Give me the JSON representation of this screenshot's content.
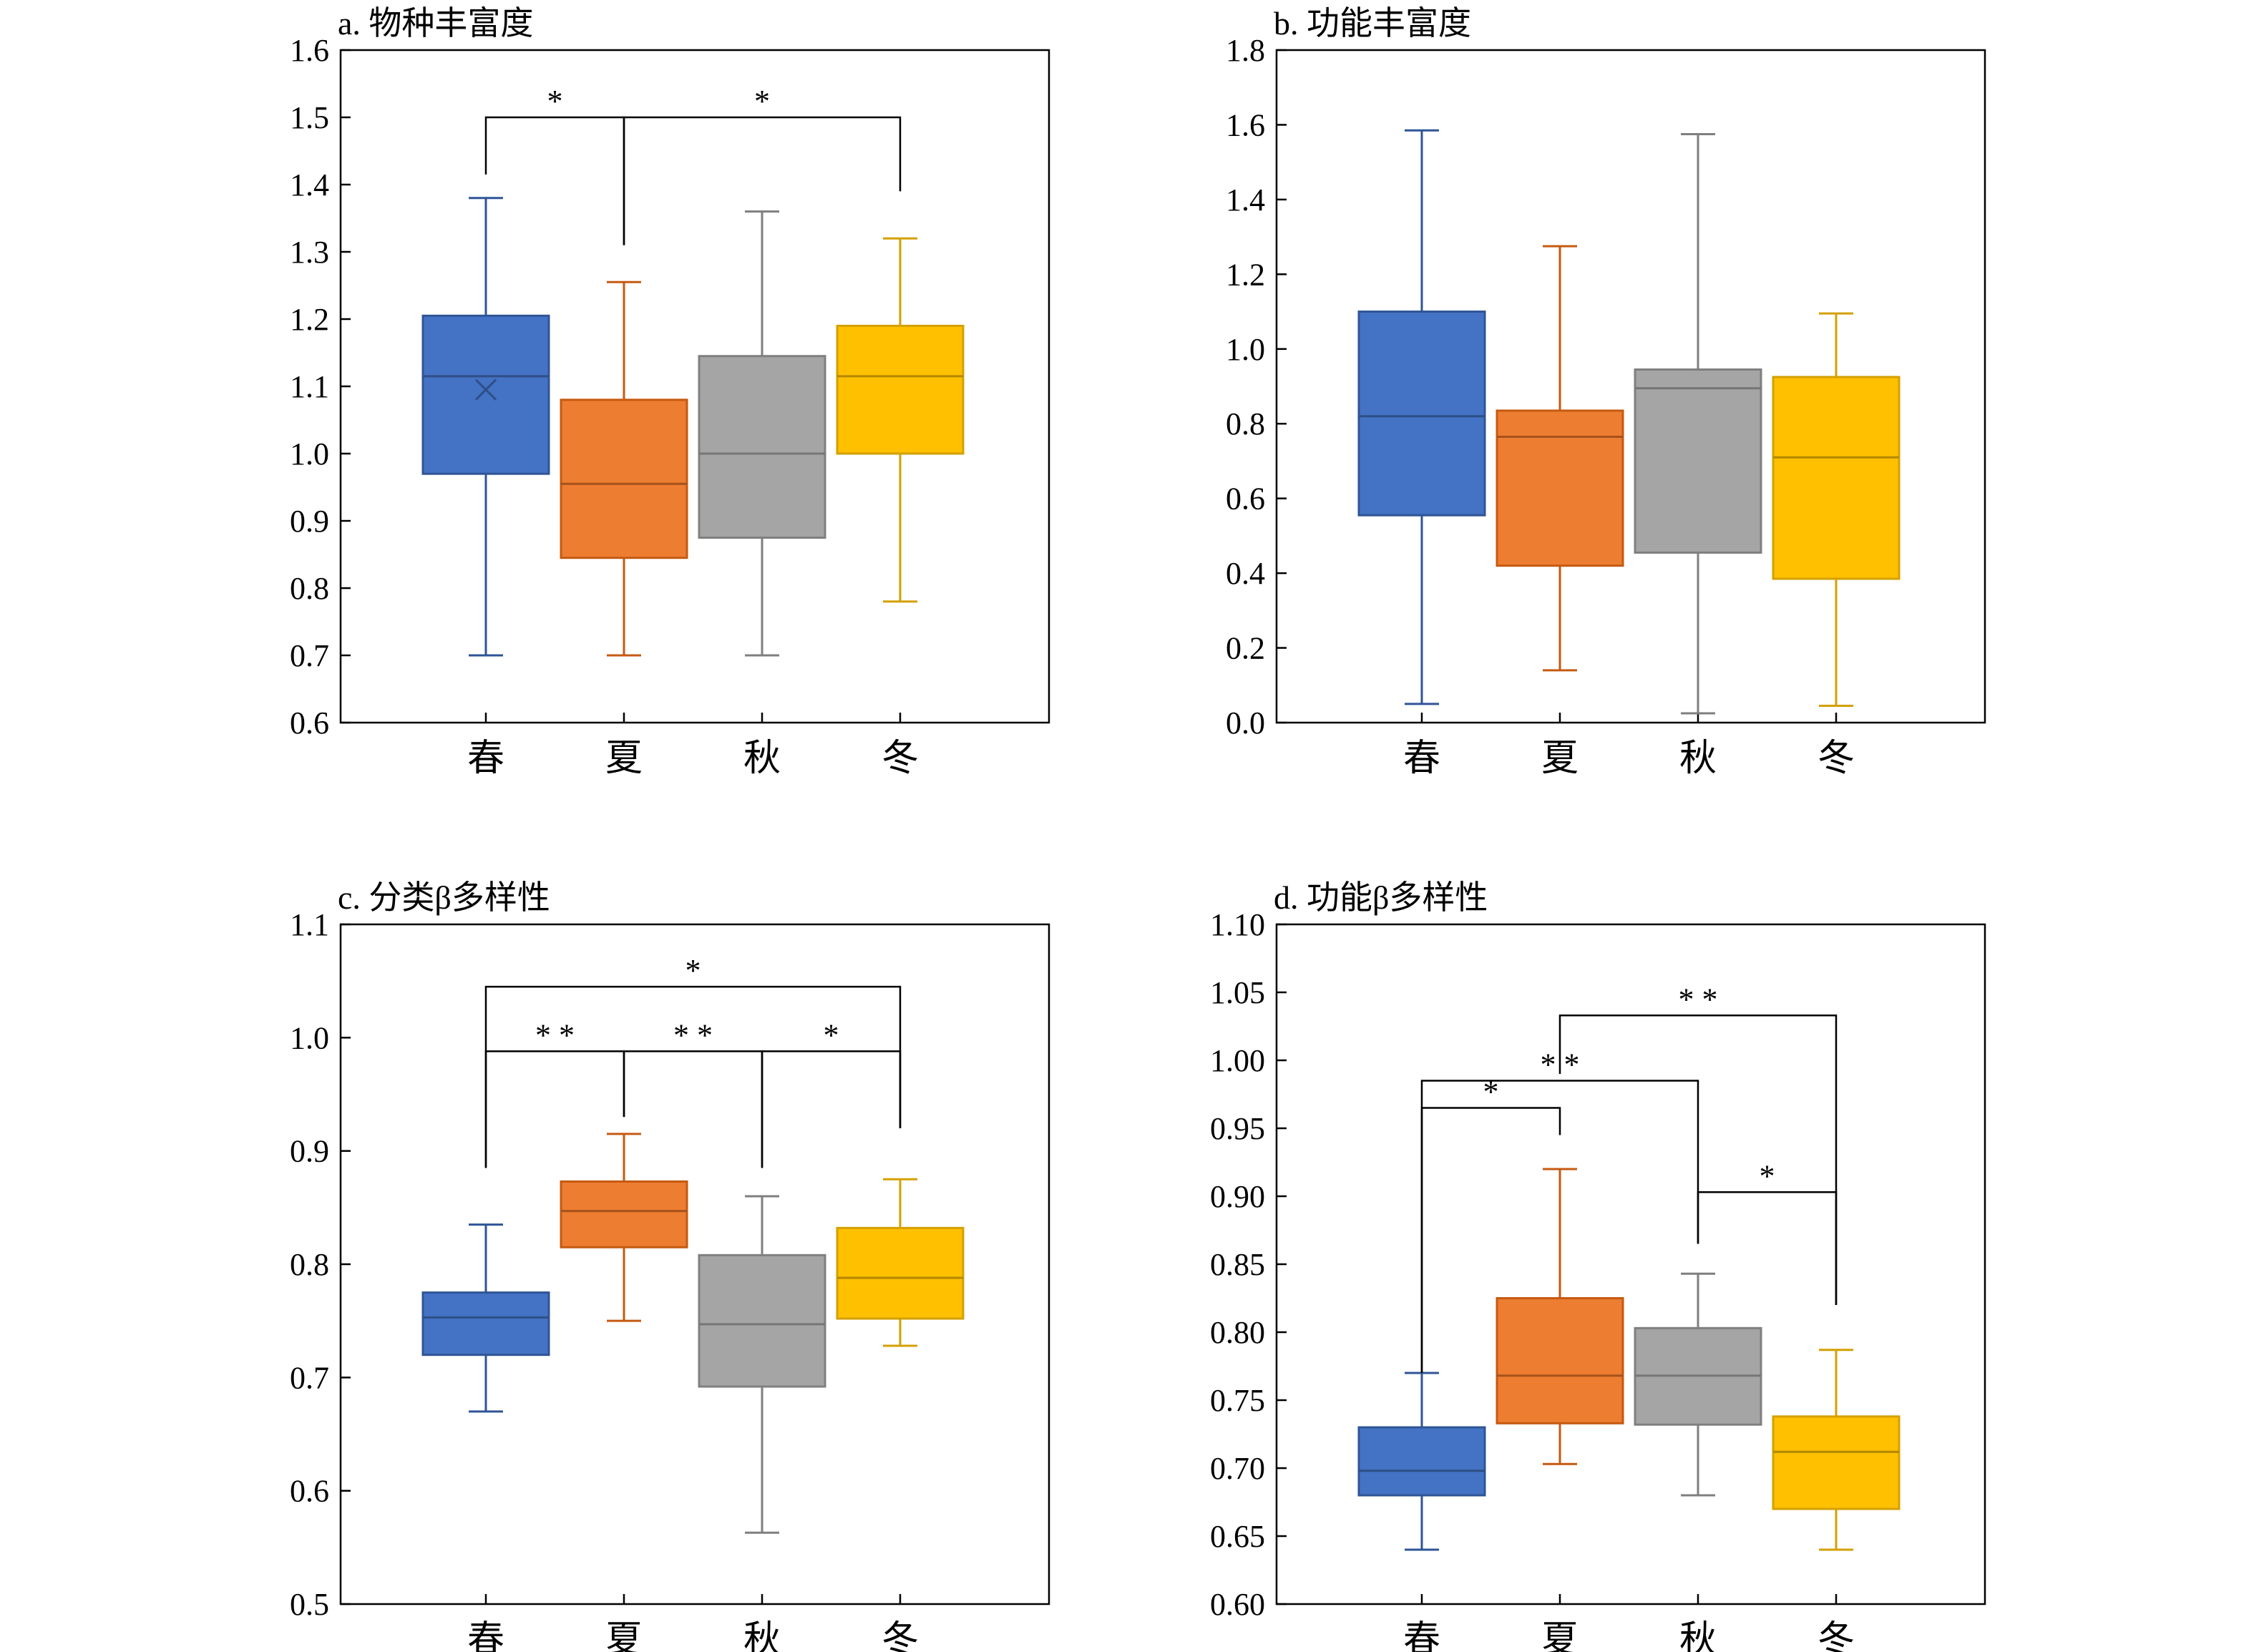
{
  "colors": {
    "春": {
      "fill": "#4472C4",
      "stroke": "#2F5597",
      "median": "#2E4F86"
    },
    "夏": {
      "fill": "#ED7D31",
      "stroke": "#C55A11",
      "median": "#A6521B"
    },
    "秋": {
      "fill": "#A5A5A5",
      "stroke": "#7F7F7F",
      "median": "#767676"
    },
    "冬": {
      "fill": "#FFC000",
      "stroke": "#D4A000",
      "median": "#B38800"
    }
  },
  "chart_data": [
    {
      "id": "a",
      "type": "box",
      "title": "a. 物种丰富度",
      "categories": [
        "春",
        "夏",
        "秋",
        "冬"
      ],
      "ylim": [
        0.6,
        1.6
      ],
      "yticks": [
        "0.6",
        "0.7",
        "0.8",
        "0.9",
        "1.0",
        "1.1",
        "1.2",
        "1.3",
        "1.4",
        "1.5",
        "1.6"
      ],
      "boxes": [
        {
          "category": "春",
          "min": 0.7,
          "q1": 0.97,
          "median": 1.115,
          "q3": 1.205,
          "max": 1.38,
          "mean": 1.095
        },
        {
          "category": "夏",
          "min": 0.7,
          "q1": 0.845,
          "median": 0.955,
          "q3": 1.08,
          "max": 1.255
        },
        {
          "category": "秋",
          "min": 0.7,
          "q1": 0.875,
          "median": 1.0,
          "q3": 1.145,
          "max": 1.36
        },
        {
          "category": "冬",
          "min": 0.78,
          "q1": 1.0,
          "median": 1.115,
          "q3": 1.19,
          "max": 1.32
        }
      ],
      "significance": [
        {
          "from": "春",
          "to": "夏",
          "label": "*",
          "y": 1.5,
          "drop_from": 1.415,
          "drop_to": 1.31
        },
        {
          "from": "夏",
          "to": "冬",
          "label": "*",
          "y": 1.5,
          "drop_from": 1.31,
          "drop_to": 1.39
        }
      ]
    },
    {
      "id": "b",
      "type": "box",
      "title": "b. 功能丰富度",
      "categories": [
        "春",
        "夏",
        "秋",
        "冬"
      ],
      "ylim": [
        0.0,
        1.8
      ],
      "yticks": [
        "0.0",
        "0.2",
        "0.4",
        "0.6",
        "0.8",
        "1.0",
        "1.2",
        "1.4",
        "1.6",
        "1.8"
      ],
      "boxes": [
        {
          "category": "春",
          "min": 0.05,
          "q1": 0.555,
          "median": 0.82,
          "q3": 1.1,
          "max": 1.585
        },
        {
          "category": "夏",
          "min": 0.14,
          "q1": 0.42,
          "median": 0.765,
          "q3": 0.835,
          "max": 1.275
        },
        {
          "category": "秋",
          "min": 0.025,
          "q1": 0.455,
          "median": 0.895,
          "q3": 0.945,
          "max": 1.575
        },
        {
          "category": "冬",
          "min": 0.045,
          "q1": 0.385,
          "median": 0.71,
          "q3": 0.925,
          "max": 1.095
        }
      ],
      "significance": []
    },
    {
      "id": "c",
      "type": "box",
      "title": "c. 分类β多样性",
      "categories": [
        "春",
        "夏",
        "秋",
        "冬"
      ],
      "ylim": [
        0.5,
        1.1
      ],
      "yticks": [
        "0.5",
        "0.6",
        "0.7",
        "0.8",
        "0.9",
        "1.0",
        "1.1"
      ],
      "boxes": [
        {
          "category": "春",
          "min": 0.67,
          "q1": 0.72,
          "median": 0.753,
          "q3": 0.775,
          "max": 0.835
        },
        {
          "category": "夏",
          "min": 0.75,
          "q1": 0.815,
          "median": 0.847,
          "q3": 0.873,
          "max": 0.915
        },
        {
          "category": "秋",
          "min": 0.563,
          "q1": 0.692,
          "median": 0.747,
          "q3": 0.808,
          "max": 0.86
        },
        {
          "category": "冬",
          "min": 0.728,
          "q1": 0.752,
          "median": 0.788,
          "q3": 0.832,
          "max": 0.875
        }
      ],
      "significance": [
        {
          "from": "春",
          "to": "冬",
          "label": "*",
          "y": 1.045,
          "drop_from": 0.885,
          "drop_to": 0.92
        },
        {
          "from": "春",
          "to": "夏",
          "label": "* *",
          "y": 0.988,
          "drop_from": 0.885,
          "drop_to": 0.93
        },
        {
          "from": "夏",
          "to": "秋",
          "label": "* *",
          "y": 0.988,
          "drop_from": 0.93,
          "drop_to": 0.885
        },
        {
          "from": "秋",
          "to": "冬",
          "label": "*",
          "y": 0.988,
          "drop_from": 0.885,
          "drop_to": 0.92
        }
      ]
    },
    {
      "id": "d",
      "type": "box",
      "title": "d. 功能β多样性",
      "categories": [
        "春",
        "夏",
        "秋",
        "冬"
      ],
      "ylim": [
        0.6,
        1.1
      ],
      "yticks": [
        "0.60",
        "0.65",
        "0.70",
        "0.75",
        "0.80",
        "0.85",
        "0.90",
        "0.95",
        "1.00",
        "1.05",
        "1.10"
      ],
      "boxes": [
        {
          "category": "春",
          "min": 0.64,
          "q1": 0.68,
          "median": 0.698,
          "q3": 0.73,
          "max": 0.77
        },
        {
          "category": "夏",
          "min": 0.703,
          "q1": 0.733,
          "median": 0.768,
          "q3": 0.825,
          "max": 0.92
        },
        {
          "category": "秋",
          "min": 0.68,
          "q1": 0.732,
          "median": 0.768,
          "q3": 0.803,
          "max": 0.843
        },
        {
          "category": "冬",
          "min": 0.64,
          "q1": 0.67,
          "median": 0.712,
          "q3": 0.738,
          "max": 0.787
        }
      ],
      "significance": [
        {
          "from": "夏",
          "to": "冬",
          "label": "* *",
          "y": 1.033,
          "drop_from": 0.99,
          "drop_to": 0.82
        },
        {
          "from": "春",
          "to": "秋",
          "label": "* *",
          "y": 0.985,
          "drop_from": 0.77,
          "drop_to": 0.865
        },
        {
          "from": "春",
          "to": "夏",
          "label": "*",
          "y": 0.965,
          "drop_from": 0.77,
          "drop_to": 0.945
        },
        {
          "from": "秋",
          "to": "冬",
          "label": "*",
          "y": 0.903,
          "drop_from": 0.865,
          "drop_to": 0.82
        }
      ]
    }
  ]
}
